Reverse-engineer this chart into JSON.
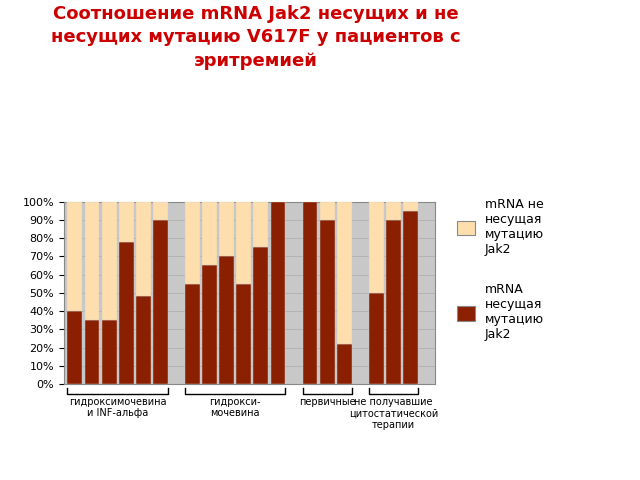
{
  "title": "Соотношение mRNA Jak2 несущих и не\nнесущих мутацию V617F у пациентов с\nэритремией",
  "title_color": "#cc0000",
  "bar_color_mutation": "#8B2000",
  "bar_color_no_mutation": "#FFDEAD",
  "background_color": "#C8C8C8",
  "legend_no_mutation": "mRNA не\nнесущая\nмутацию\nJak2",
  "legend_mutation": "mRNA\nнесущая\nмутацию\nJak2",
  "groups": [
    {
      "name": "гидроксимочевина\nи INF-альфа",
      "mutation_values": [
        40,
        35,
        35,
        78,
        48,
        90
      ]
    },
    {
      "name": "гидрокси-\nмочевина",
      "mutation_values": [
        55,
        65,
        70,
        55,
        75,
        100
      ]
    },
    {
      "name": "первичные",
      "mutation_values": [
        100,
        90,
        22
      ]
    },
    {
      "name": "не получавшие\nцитостатической\nтерапии",
      "mutation_values": [
        50,
        90,
        95
      ]
    }
  ],
  "yticks": [
    0,
    10,
    20,
    30,
    40,
    50,
    60,
    70,
    80,
    90,
    100
  ],
  "yticklabels": [
    "0%",
    "10%",
    "20%",
    "30%",
    "40%",
    "50%",
    "60%",
    "70%",
    "80%",
    "90%",
    "100%"
  ]
}
